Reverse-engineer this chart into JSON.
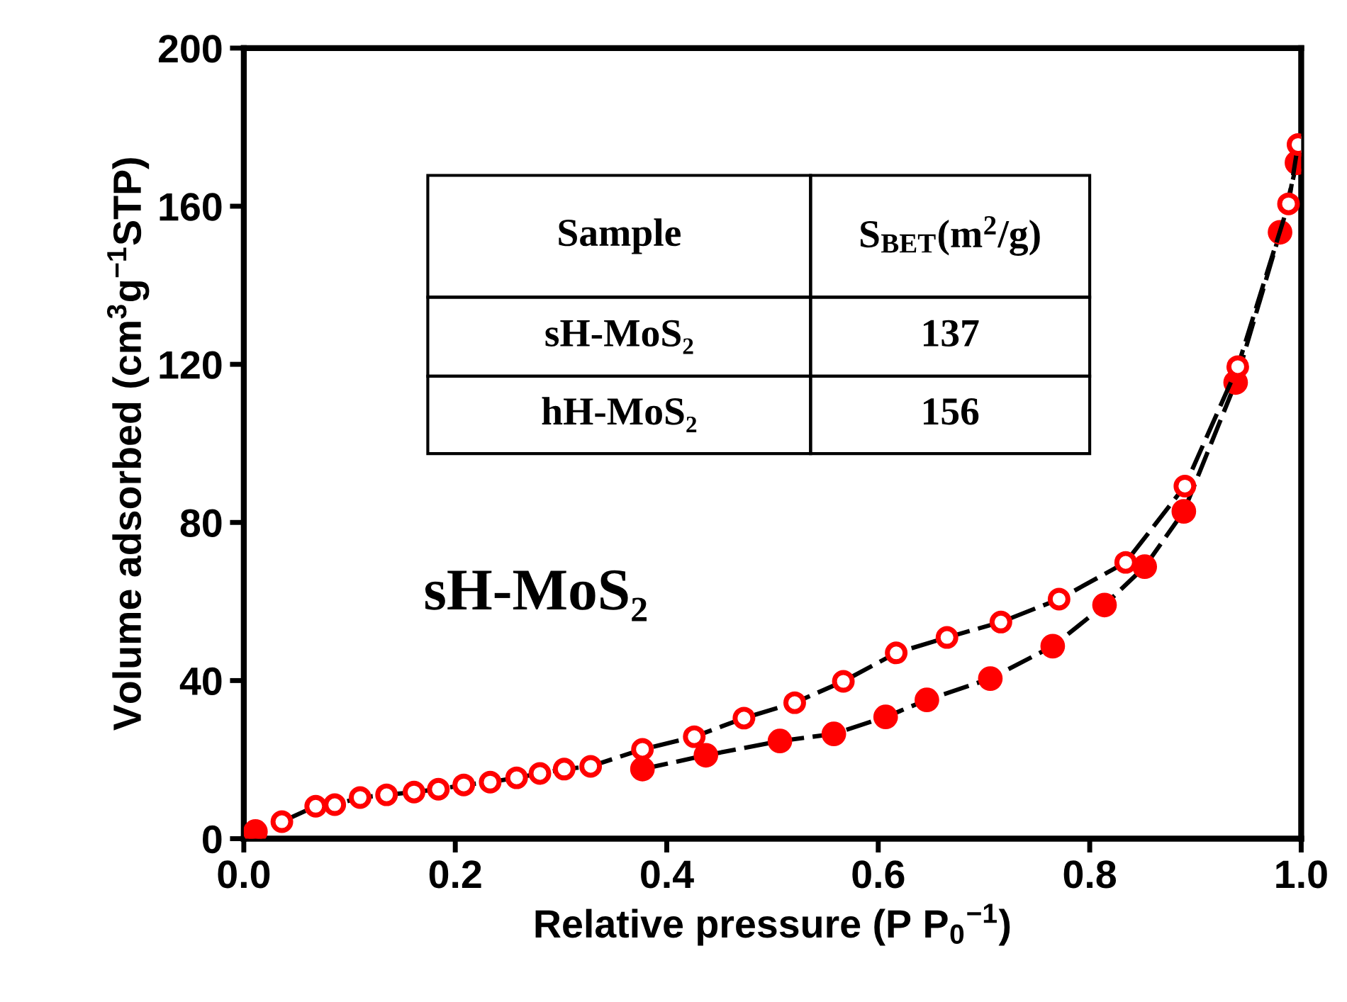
{
  "chart_data": {
    "type": "line",
    "xlabel": "Relative pressure (P P$_{0}$$^{−1}$)",
    "ylabel": "Volume adsorbed (cm$^{3}$g$^{−1}$STP)",
    "xlim": [
      0.0,
      1.0
    ],
    "xticks": [
      {
        "value": 0,
        "label": "0.0"
      },
      0.2,
      0.4,
      0.6,
      0.8,
      {
        "value": 1,
        "label": "1.0"
      }
    ],
    "ylim": [
      0,
      200
    ],
    "yticks": [
      0,
      40,
      80,
      120,
      160,
      200
    ],
    "grid": false,
    "marker": "circle",
    "line_style": "dashed",
    "annotations": [
      "sH-MoS₂",
      "Sample",
      "S$_{BET}$(m$^{2}$/g)",
      "sH-MoS₂",
      "137",
      "hH-MoS₂",
      "156"
    ],
    "series": [
      {
        "color": "#ff0000",
        "x": [
          0.011,
          0.07,
          0.11,
          0.14,
          0.17,
          0.2,
          0.23,
          0.27,
          0.31,
          0.335,
          0.377,
          0.437,
          0.507,
          0.558,
          0.607,
          0.646,
          0.706,
          0.765,
          0.814,
          0.852,
          0.889,
          0.938,
          0.98,
          0.996
        ],
        "values": [
          1.8,
          null,
          null,
          null,
          null,
          null,
          null,
          null,
          null,
          null,
          17.6,
          21.1,
          24.7,
          26.5,
          30.8,
          35.1,
          40.5,
          48.7,
          59.1,
          68.8,
          82.8,
          115.4,
          153.4,
          171
        ]
      },
      {
        "color": "#ff0000",
        "x": [
          0.036,
          0.068,
          0.086,
          0.11,
          0.135,
          0.161,
          0.184,
          0.208,
          0.233,
          0.258,
          0.28,
          0.303,
          0.328,
          0.377,
          0.426,
          0.473,
          0.521,
          0.567,
          0.617,
          0.665,
          0.716,
          0.771,
          0.834,
          0.89,
          0.94,
          0.988,
          0.997
        ],
        "values": [
          4.3,
          8.2,
          8.6,
          10.4,
          11.1,
          11.8,
          12.5,
          13.6,
          14.3,
          15.4,
          16.5,
          17.6,
          18.3,
          22.6,
          25.8,
          30.5,
          34.4,
          39.8,
          47,
          50.9,
          54.8,
          60.6,
          69.9,
          89.2,
          119.4,
          160.6,
          175.6
        ]
      }
    ]
  }
}
